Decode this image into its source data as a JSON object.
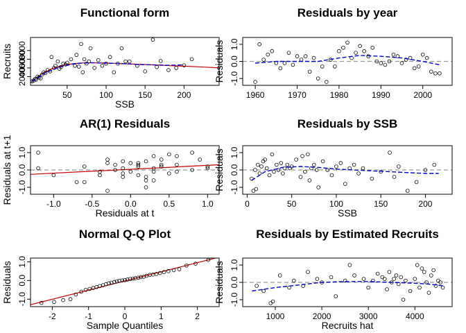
{
  "colors": {
    "points": "#000000",
    "fit": "#cc0000",
    "smooth": "#0000cc",
    "zero": "#999999",
    "frame": "#000000"
  },
  "chart_data": [
    {
      "id": "p1",
      "type": "scatter",
      "title": "Functional form",
      "xlabel": "SSB",
      "ylabel": "Recruits",
      "xlim": [
        3,
        245
      ],
      "ylim": [
        0,
        11000
      ],
      "xticks": [
        50,
        100,
        150,
        200
      ],
      "yticks": [
        2000,
        4000,
        6000,
        8000
      ],
      "x": [
        5,
        7,
        9,
        10,
        12,
        14,
        16,
        18,
        20,
        22,
        25,
        28,
        30,
        33,
        35,
        38,
        40,
        42,
        45,
        48,
        50,
        55,
        60,
        62,
        65,
        68,
        70,
        72,
        75,
        78,
        80,
        85,
        90,
        95,
        100,
        105,
        110,
        115,
        120,
        125,
        130,
        140,
        150,
        160,
        165,
        170,
        180,
        190,
        200,
        210
      ],
      "y": [
        900,
        1100,
        1500,
        1300,
        2000,
        1800,
        1600,
        2500,
        3000,
        2800,
        3500,
        3200,
        6500,
        4000,
        4500,
        5500,
        3800,
        4200,
        5000,
        4800,
        5200,
        6000,
        4500,
        7000,
        4300,
        9500,
        3000,
        6000,
        5000,
        5500,
        8500,
        4000,
        5800,
        4500,
        5000,
        6500,
        3000,
        5000,
        8500,
        5500,
        5500,
        4500,
        3200,
        10500,
        4200,
        5600,
        3500,
        4000,
        4600,
        6000
      ],
      "fit_curve": {
        "x": [
          3,
          10,
          20,
          30,
          40,
          50,
          60,
          70,
          80,
          90,
          100,
          110,
          120,
          130,
          140,
          150,
          160,
          170,
          180,
          190,
          200,
          220,
          245
        ],
        "y": [
          600,
          1700,
          2900,
          3800,
          4400,
          4800,
          5000,
          5150,
          5180,
          5160,
          5120,
          5060,
          5000,
          4920,
          4850,
          4780,
          4700,
          4620,
          4550,
          4470,
          4400,
          4250,
          4000
        ]
      },
      "smooth_curve": {
        "x": [
          5,
          20,
          40,
          60,
          80,
          100,
          120,
          140,
          160,
          180,
          200
        ],
        "y": [
          900,
          2700,
          4200,
          5000,
          5200,
          5100,
          5000,
          4800,
          4700,
          4600,
          4700
        ]
      }
    },
    {
      "id": "p2",
      "type": "scatter",
      "title": "Residuals by year",
      "xlabel": "",
      "ylabel": "Residuals",
      "xlim": [
        1957,
        2007
      ],
      "ylim": [
        -1.4,
        1.4
      ],
      "xticks": [
        1960,
        1970,
        1980,
        1990,
        2000
      ],
      "yticks": [
        -1.0,
        0.0,
        1.0
      ],
      "yticklabels": [
        "-1.0",
        "0.0",
        "1.0"
      ],
      "x": [
        1960,
        1961,
        1962,
        1963,
        1964,
        1965,
        1966,
        1967,
        1968,
        1969,
        1970,
        1971,
        1972,
        1973,
        1974,
        1975,
        1976,
        1977,
        1978,
        1979,
        1980,
        1981,
        1982,
        1983,
        1984,
        1985,
        1986,
        1987,
        1988,
        1989,
        1990,
        1991,
        1992,
        1993,
        1994,
        1995,
        1996,
        1997,
        1998,
        1999,
        2000,
        2001,
        2002,
        2003,
        2004
      ],
      "y": [
        -1.2,
        1.0,
        0.1,
        0.4,
        0.6,
        -0.1,
        -0.4,
        -0.1,
        0.5,
        -0.2,
        0.3,
        0.1,
        0.3,
        -0.6,
        0.2,
        -1.0,
        -0.3,
        -1.2,
        0.1,
        -0.3,
        0.6,
        0.8,
        1.1,
        0.2,
        0.5,
        0.9,
        0.6,
        0.3,
        0.8,
        0.0,
        -0.1,
        -0.2,
        0.0,
        0.4,
        0.3,
        -0.1,
        0.1,
        0.2,
        -0.4,
        -0.3,
        0.4,
        0.2,
        -0.6,
        -0.7,
        -0.7
      ],
      "smooth_curve": {
        "x": [
          1960,
          1965,
          1970,
          1975,
          1980,
          1985,
          1990,
          1995,
          2000,
          2004
        ],
        "y": [
          -0.1,
          0.0,
          0.0,
          0.0,
          0.2,
          0.35,
          0.3,
          0.2,
          0.0,
          -0.2
        ]
      },
      "zero_line": true
    },
    {
      "id": "p3",
      "type": "scatter",
      "title": "AR(1) Residuals",
      "xlabel": "Residuals at t",
      "ylabel": "Residuals at t+1",
      "xlim": [
        -1.3,
        1.15
      ],
      "ylim": [
        -1.4,
        1.4
      ],
      "xticks": [
        -1.0,
        -0.5,
        0.0,
        0.5,
        1.0
      ],
      "xticklabels": [
        "-1.0",
        "-0.5",
        "0.0",
        "0.5",
        "1.0"
      ],
      "yticks": [
        -1.0,
        0.0,
        1.0
      ],
      "yticklabels": [
        "-1.0",
        "0.0",
        "1.0"
      ],
      "x": [
        -1.2,
        1.0,
        0.1,
        0.4,
        0.6,
        -0.1,
        -0.4,
        -0.1,
        0.5,
        -0.2,
        0.3,
        0.1,
        0.3,
        -0.6,
        0.2,
        -1.0,
        -0.3,
        -1.2,
        0.1,
        -0.3,
        0.6,
        0.8,
        1.0,
        0.2,
        0.5,
        0.9,
        0.6,
        0.3,
        0.8,
        0.0,
        -0.1,
        -0.2,
        0.0,
        0.4,
        0.3,
        -0.1,
        0.1,
        0.2,
        -0.4,
        -0.3,
        0.4,
        0.2,
        -0.6,
        -0.7
      ],
      "y": [
        1.0,
        0.1,
        0.4,
        0.6,
        -0.1,
        -0.4,
        -0.1,
        0.5,
        -0.2,
        0.3,
        0.1,
        0.3,
        -0.6,
        0.2,
        -1.0,
        -0.3,
        -1.2,
        0.1,
        -0.3,
        0.6,
        0.8,
        1.0,
        0.2,
        0.5,
        0.9,
        0.6,
        0.3,
        0.8,
        0.0,
        -0.1,
        -0.2,
        0.0,
        0.4,
        0.3,
        -0.1,
        0.1,
        0.2,
        -0.4,
        -0.3,
        0.4,
        0.2,
        -0.6,
        -0.7,
        -0.7
      ],
      "fit_line": {
        "x": [
          -1.3,
          1.15
        ],
        "y": [
          -0.25,
          0.3
        ]
      },
      "zero_line": true
    },
    {
      "id": "p4",
      "type": "scatter",
      "title": "Residuals by SSB",
      "xlabel": "SSB",
      "ylabel": "Residuals",
      "xlim": [
        -5,
        230
      ],
      "ylim": [
        -1.4,
        1.4
      ],
      "xticks": [
        0,
        50,
        100,
        150,
        200
      ],
      "yticks": [
        -1.0,
        0.0,
        1.0
      ],
      "yticklabels": [
        "-1.0",
        "0.0",
        "1.0"
      ],
      "x": [
        5,
        7,
        9,
        10,
        12,
        14,
        16,
        18,
        20,
        22,
        25,
        28,
        30,
        33,
        35,
        38,
        40,
        42,
        45,
        48,
        50,
        55,
        60,
        62,
        65,
        68,
        70,
        72,
        75,
        78,
        80,
        85,
        90,
        95,
        100,
        105,
        110,
        115,
        120,
        125,
        130,
        140,
        150,
        160,
        165,
        170,
        180,
        190,
        200,
        210
      ],
      "y": [
        -0.5,
        -1.2,
        0.0,
        -1.1,
        0.3,
        -0.2,
        0.2,
        0.5,
        0.6,
        0.1,
        -0.3,
        0.9,
        -0.1,
        0.3,
        0.0,
        0.4,
        -0.2,
        0.1,
        0.3,
        0.1,
        0.2,
        0.6,
        -0.4,
        0.8,
        -0.1,
        0.9,
        -0.6,
        0.1,
        0.3,
        0.0,
        -1.0,
        0.5,
        0.0,
        -0.3,
        0.2,
        0.4,
        -0.8,
        0.1,
        0.3,
        -0.2,
        0.1,
        -0.5,
        -0.1,
        1.0,
        -0.4,
        0.2,
        -1.2,
        -0.7,
        0.0,
        0.3
      ],
      "smooth_curve": {
        "x": [
          5,
          20,
          40,
          60,
          80,
          100,
          120,
          140,
          160,
          180,
          200,
          215
        ],
        "y": [
          -0.6,
          -0.1,
          0.15,
          0.2,
          0.15,
          0.05,
          0.0,
          -0.05,
          -0.1,
          -0.15,
          -0.2,
          -0.2
        ]
      },
      "zero_line": true
    },
    {
      "id": "p5",
      "type": "scatter",
      "title": "Normal Q-Q Plot",
      "xlabel": "Sample Quantiles",
      "ylabel": "Residuals",
      "xlim": [
        -2.6,
        2.6
      ],
      "ylim": [
        -1.4,
        1.2
      ],
      "xticks": [
        -2,
        -1,
        0,
        1,
        2
      ],
      "yticks": [
        -1.0,
        0.0,
        1.0
      ],
      "yticklabels": [
        "-1.0",
        "0.0",
        "1.0"
      ],
      "x": [
        -2.3,
        -1.95,
        -1.7,
        -1.5,
        -1.35,
        -1.2,
        -1.08,
        -0.97,
        -0.87,
        -0.78,
        -0.69,
        -0.6,
        -0.52,
        -0.44,
        -0.37,
        -0.29,
        -0.22,
        -0.15,
        -0.07,
        0.0,
        0.07,
        0.15,
        0.22,
        0.29,
        0.37,
        0.44,
        0.52,
        0.6,
        0.69,
        0.78,
        0.87,
        0.97,
        1.08,
        1.2,
        1.35,
        1.5,
        1.7,
        1.95,
        2.3
      ],
      "y": [
        -1.2,
        -1.15,
        -1.05,
        -1.0,
        -0.75,
        -0.6,
        -0.5,
        -0.45,
        -0.4,
        -0.35,
        -0.3,
        -0.25,
        -0.2,
        -0.15,
        -0.12,
        -0.08,
        -0.05,
        -0.02,
        0.0,
        0.02,
        0.05,
        0.08,
        0.1,
        0.12,
        0.15,
        0.18,
        0.2,
        0.25,
        0.3,
        0.32,
        0.35,
        0.4,
        0.45,
        0.5,
        0.55,
        0.6,
        0.8,
        0.9,
        1.1
      ],
      "fit_line": {
        "x": [
          -2.6,
          2.6
        ],
        "y": [
          -1.3,
          1.25
        ]
      }
    },
    {
      "id": "p6",
      "type": "scatter",
      "title": "Residuals by Estimated Recruits",
      "xlabel": "Recruits hat",
      "ylabel": "Residuals",
      "xlim": [
        300,
        4800
      ],
      "ylim": [
        -1.4,
        1.4
      ],
      "xticks": [
        1000,
        2000,
        3000,
        4000
      ],
      "yticks": [
        -1.0,
        0.0,
        1.0
      ],
      "yticklabels": [
        "-1.0",
        "0.0",
        "1.0"
      ],
      "x": [
        600,
        750,
        900,
        950,
        1100,
        1300,
        1400,
        1600,
        1700,
        1900,
        2000,
        2200,
        2300,
        2500,
        2600,
        2700,
        2900,
        3000,
        3100,
        3200,
        3300,
        3350,
        3400,
        3450,
        3500,
        3550,
        3600,
        3650,
        3700,
        3750,
        3800,
        3900,
        4000,
        4050,
        4100,
        4150,
        4200,
        4250,
        4300,
        4350,
        4400,
        4450,
        4500,
        4550,
        4600
      ],
      "y": [
        -0.2,
        -0.5,
        -1.2,
        -1.1,
        0.4,
        -0.3,
        0.1,
        -0.2,
        0.6,
        0.2,
        0.0,
        0.3,
        -0.8,
        0.1,
        1.0,
        0.4,
        0.2,
        -0.3,
        0.1,
        0.5,
        0.3,
        0.2,
        -0.4,
        0.6,
        0.0,
        0.2,
        0.4,
        -0.1,
        0.3,
        -1.0,
        0.1,
        -0.5,
        0.2,
        1.0,
        -0.3,
        0.8,
        0.6,
        0.0,
        -0.6,
        0.4,
        0.7,
        -0.2,
        0.1,
        0.0,
        -0.3
      ],
      "smooth_curve": {
        "x": [
          500,
          1000,
          1500,
          2000,
          2500,
          3000,
          3500,
          4000,
          4300,
          4600
        ],
        "y": [
          -0.5,
          -0.3,
          -0.15,
          0.0,
          0.05,
          0.05,
          0.0,
          -0.05,
          -0.1,
          -0.2
        ]
      },
      "zero_line": true
    }
  ]
}
